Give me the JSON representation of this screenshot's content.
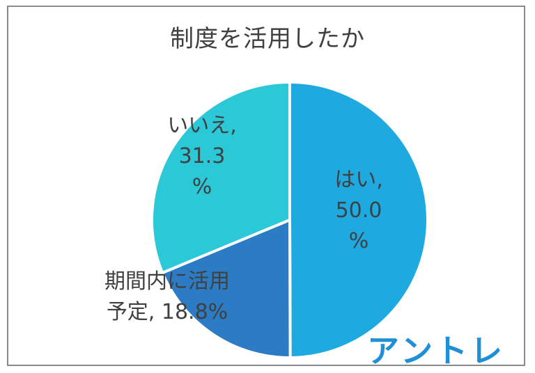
{
  "chart_data": {
    "type": "pie",
    "title": "制度を活用したか",
    "slices": [
      {
        "label": "はい",
        "value": 50.0,
        "color": "#1ea9e1",
        "text_lines": [
          "はい,",
          "50.0",
          "%"
        ]
      },
      {
        "label": "期間内に活用予定",
        "value": 18.8,
        "color": "#2b7cc4",
        "text_lines": [
          "期間内に活用",
          "予定, 18.8%"
        ]
      },
      {
        "label": "いいえ",
        "value": 31.3,
        "color": "#2bc8d8",
        "text_lines": [
          "いいえ,",
          "31.3",
          "%"
        ]
      }
    ]
  },
  "logo_text": "アントレ"
}
